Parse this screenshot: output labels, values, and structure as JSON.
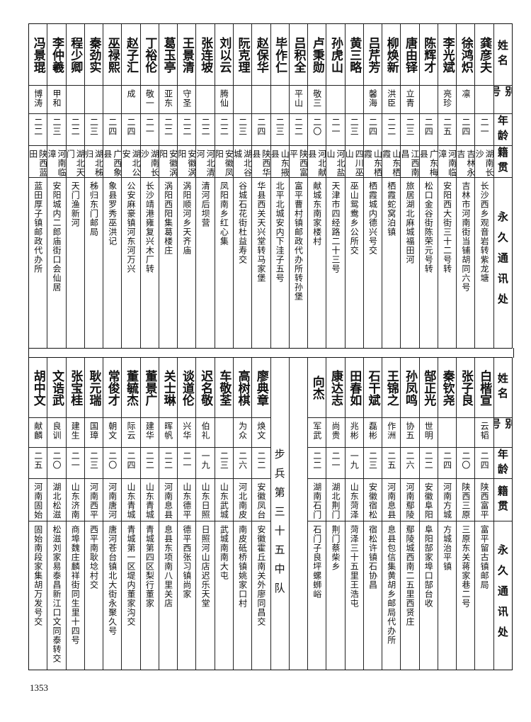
{
  "header": {
    "name": "姓名",
    "alias": "别号",
    "age": "年龄",
    "origin": "籍贯",
    "address": "永久通讯处"
  },
  "top_table": [
    {
      "name": "龚彦夫",
      "alias": "",
      "age": "二一",
      "origin": "湖南长沙",
      "address": "长沙西乡观音岩转紫龙塘"
    },
    {
      "name": "徐鸿炽",
      "alias": "凛",
      "age": "二四",
      "origin": "吉林永吉",
      "address": "吉林市河南街当铺胡同六号"
    },
    {
      "name": "李光斌",
      "alias": "亮珍",
      "age": "二五",
      "origin": "河南临漳",
      "address": "安阳西大街三十二号转"
    },
    {
      "name": "陈辉才",
      "alias": "",
      "age": "二四",
      "origin": "广东梅县",
      "address": "松口金谷街陈荣元号转"
    },
    {
      "name": "唐由铎",
      "alias": "立青",
      "age": "二三",
      "origin": "江西南昌",
      "address": "旅居湖北麻城福田河"
    },
    {
      "name": "柳焕新",
      "alias": "洪臣",
      "age": "二二",
      "origin": "山东栖霞",
      "address": "栖霞蛇窝泊镇"
    },
    {
      "name": "吕芹芳",
      "alias": "馨海",
      "age": "二四",
      "origin": "山东栖霞",
      "address": "栖霞城内德兴号交"
    },
    {
      "name": "黄三略",
      "alias": "",
      "age": "二三",
      "origin": "四川巫山",
      "address": "巫山鸳鸯乡公所交"
    },
    {
      "name": "孙虎山",
      "alias": "",
      "age": "二一",
      "origin": "河北盐山",
      "address": "天津市四经路二十三号"
    },
    {
      "name": "卢秉勋",
      "alias": "敬三",
      "age": "二〇",
      "origin": "河北献县",
      "address": "献城东南家楼村"
    },
    {
      "name": "吕积全",
      "alias": "平山",
      "age": "二二",
      "origin": "陕西富平",
      "address": "富平曹村镇邮政代办所转孙堡"
    },
    {
      "name": "毕作仁",
      "alias": "",
      "age": "二三",
      "origin": "山东掖县",
      "address": "北平北城安内下洼子五号"
    },
    {
      "name": "赵保华",
      "alias": "",
      "age": "二四",
      "origin": "陕西华县",
      "address": "华县西关天兴堂转马家堡"
    },
    {
      "name": "阮克理",
      "alias": "",
      "age": "二三",
      "origin": "湖北谷城",
      "address": "谷城石花街杜益寿交"
    },
    {
      "name": "刘以云",
      "alias": "腾仙",
      "age": "二二",
      "origin": "安徽凤阳",
      "address": "凤阳南乡红心集"
    },
    {
      "name": "张连坡",
      "alias": "",
      "age": "二二",
      "origin": "河北清河",
      "address": "清河后坝营"
    },
    {
      "name": "王景清",
      "alias": "守圣",
      "age": "二二",
      "origin": "安徽涡阳",
      "address": "涡阳顺河乡天齐庙"
    },
    {
      "name": "葛玉亭",
      "alias": "亚东",
      "age": "二二",
      "origin": "安徽涡阳",
      "address": "涡阳西阳集葛楼庄"
    },
    {
      "name": "丁裕伦",
      "alias": "敬一",
      "age": "二一",
      "origin": "湖南长沙",
      "address": "长沙靖港雍复兴木厂转"
    },
    {
      "name": "赵子汇",
      "alias": "成",
      "age": "二四",
      "origin": "湖北公安",
      "address": "公安麻豪镇河东河万兴"
    },
    {
      "name": "巫禄熙",
      "alias": "",
      "age": "二四",
      "origin": "广西象县",
      "address": "象县罗秀巫洪记"
    },
    {
      "name": "秦劲实",
      "alias": "",
      "age": "二三",
      "origin": "湖北秭归",
      "address": "秭归东门邮局"
    },
    {
      "name": "程少卿",
      "alias": "",
      "age": "二二",
      "origin": "湖北天门",
      "address": "天门渔新河"
    },
    {
      "name": "李仲羲",
      "alias": "甲和",
      "age": "二三",
      "origin": "河南临漳",
      "address": "安阳城内二郎庙街口会仙居"
    },
    {
      "name": "冯景琨",
      "alias": "博涛",
      "age": "二二",
      "origin": "陕西蓝田",
      "address": "蓝田厚子镇邮政代办所"
    }
  ],
  "bottom_table_right": [
    {
      "name": "白楷宣",
      "alias": "云韬",
      "age": "二四",
      "origin": "陕西富平",
      "address": "富平留古镇邮局"
    },
    {
      "name": "张子良",
      "alias": "",
      "age": "二〇",
      "origin": "陕西三原",
      "address": "三原东关蒋家巷二号"
    },
    {
      "name": "秦钦尧",
      "alias": "",
      "age": "二四",
      "origin": "河南方城",
      "address": "方城治平镇"
    },
    {
      "name": "郜正光",
      "alias": "世明",
      "age": "二二",
      "origin": "安徽阜阳",
      "address": "阜阳郜家埠口郜台收"
    },
    {
      "name": "孙凤鸣",
      "alias": "协五",
      "age": "二六",
      "origin": "河南鄢陵",
      "address": "鄢陵城西南二五里西贤庄"
    },
    {
      "name": "王锦之",
      "alias": "作洲",
      "age": "二五",
      "origin": "河南息县",
      "address": "息县包信集黄胡乡邮局代办所"
    },
    {
      "name": "石干斌",
      "alias": "磊彬",
      "age": "二三",
      "origin": "安徽宿松",
      "address": "宿松许镇石协昌"
    },
    {
      "name": "田春如",
      "alias": "兆彬",
      "age": "一九",
      "origin": "山东菏泽",
      "address": "菏泽三十五里王浩屯"
    },
    {
      "name": "康达志",
      "alias": "尚贵",
      "age": "二一",
      "origin": "湖北荆门",
      "address": "荆门蔡柴乡"
    },
    {
      "name": "向杰",
      "alias": "军武",
      "age": "二二",
      "origin": "湖南石门",
      "address": "石门子良坪螺蛳峪"
    }
  ],
  "unit_label": "步兵第三十五中队",
  "bottom_table_left": [
    {
      "name": "廖典章",
      "alias": "焕文",
      "age": "二二",
      "origin": "安徽凤台",
      "address": "安徽霍丘南关外廖同昌交"
    },
    {
      "name": "高树棋",
      "alias": "为众",
      "age": "二六",
      "origin": "河北南皮",
      "address": "南皮砥桥镇姚家口村"
    },
    {
      "name": "车敬荃",
      "alias": "",
      "age": "二三",
      "origin": "山东武城",
      "address": "武城南南大屯"
    },
    {
      "name": "迟名敬",
      "alias": "伯礼",
      "age": "一九",
      "origin": "山东日照",
      "address": "日照河山店迟乐天堂"
    },
    {
      "name": "谈道伦",
      "alias": "兴华",
      "age": "二一",
      "origin": "山东德平",
      "address": "德平西张习镇尚家"
    },
    {
      "name": "关士琳",
      "alias": "晖帆",
      "age": "二二",
      "origin": "河南息县",
      "address": "息县东项南八里关店"
    },
    {
      "name": "董景广",
      "alias": "建华",
      "age": "二二",
      "origin": "山东青城",
      "address": "青城第四区梨行董家"
    },
    {
      "name": "董毓杰",
      "alias": "际云",
      "age": "二四",
      "origin": "山东青城",
      "address": "青城第一区堤内董家沟交"
    },
    {
      "name": "常俊才",
      "alias": "朝文",
      "age": "二〇",
      "origin": "河南唐河",
      "address": "唐河苍台镇北大街永聚久号"
    },
    {
      "name": "耿元瑞",
      "alias": "国璋",
      "age": "二三",
      "origin": "河南西平",
      "address": "西平南耿埝村交"
    },
    {
      "name": "张宝桂",
      "alias": "建生",
      "age": "二一",
      "origin": "山东济南",
      "address": "商埠魏庄麟祥街同生里十四号"
    },
    {
      "name": "文诰武",
      "alias": "良训",
      "age": "二〇",
      "origin": "湖北松滋",
      "address": "松滋刘家易泰昌新江口文同泰转交"
    },
    {
      "name": "胡中文",
      "alias": "献麟",
      "age": "二五",
      "origin": "河南固始",
      "address": "固始南段家集胡万发号交"
    }
  ],
  "page_number": "1353"
}
